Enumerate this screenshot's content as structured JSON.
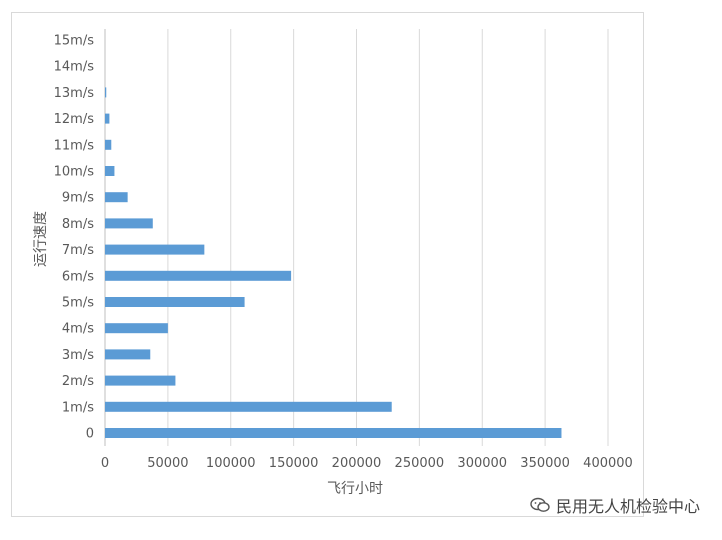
{
  "chart_data": {
    "type": "bar",
    "orientation": "horizontal",
    "categories": [
      "0",
      "1m/s",
      "2m/s",
      "3m/s",
      "4m/s",
      "5m/s",
      "6m/s",
      "7m/s",
      "8m/s",
      "9m/s",
      "10m/s",
      "11m/s",
      "12m/s",
      "13m/s",
      "14m/s",
      "15m/s"
    ],
    "values": [
      363000,
      228000,
      56000,
      36000,
      50000,
      111000,
      148000,
      79000,
      38000,
      18000,
      7500,
      5000,
      3500,
      1000,
      0,
      0
    ],
    "xlabel": "飞行小时",
    "ylabel": "运行速度",
    "xlim": [
      0,
      400000
    ],
    "xticks": [
      "0",
      "50000",
      "100000",
      "150000",
      "200000",
      "250000",
      "300000",
      "350000",
      "400000"
    ],
    "grid": "vertical",
    "bar_color": "#5b9bd5"
  },
  "watermark": {
    "text": "民用无人机检验中心",
    "icon": "wechat-icon"
  }
}
